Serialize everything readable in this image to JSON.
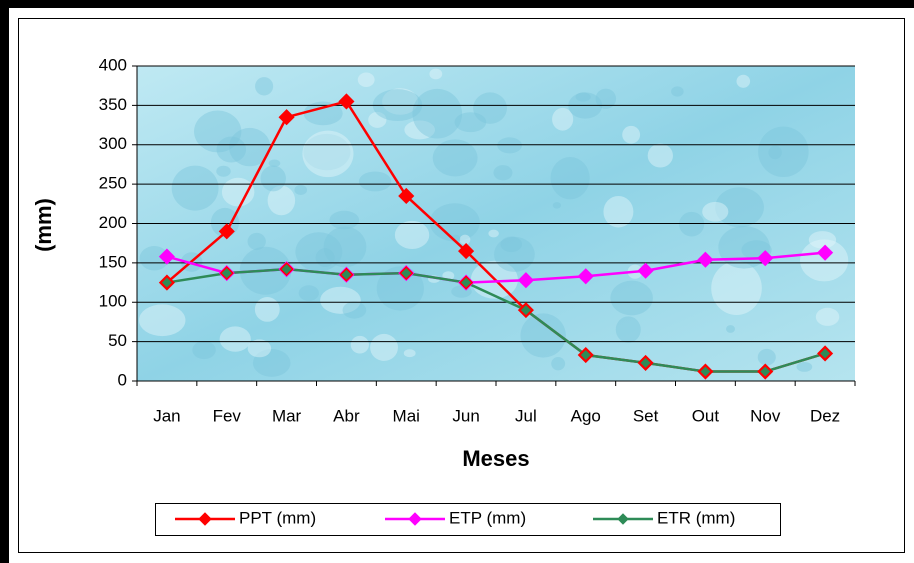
{
  "chart_data": {
    "type": "line",
    "x_label": "Meses",
    "y_label": "(mm)",
    "categories": [
      "Jan",
      "Fev",
      "Mar",
      "Abr",
      "Mai",
      "Jun",
      "Jul",
      "Ago",
      "Set",
      "Out",
      "Nov",
      "Dez"
    ],
    "series": [
      {
        "name": "PPT (mm)",
        "color": "#ff0000",
        "values": [
          125,
          190,
          335,
          355,
          235,
          165,
          90,
          33,
          23,
          12,
          12,
          35
        ]
      },
      {
        "name": "ETP (mm)",
        "color": "#ff00ff",
        "values": [
          158,
          137,
          142,
          135,
          137,
          125,
          128,
          133,
          140,
          154,
          156,
          163
        ]
      },
      {
        "name": "ETR (mm)",
        "color": "#2e8b57",
        "values": [
          125,
          137,
          142,
          135,
          137,
          125,
          90,
          33,
          23,
          12,
          12,
          35
        ]
      }
    ],
    "ylim": [
      0,
      400
    ],
    "yticks": [
      0,
      50,
      100,
      150,
      200,
      250,
      300,
      350,
      400
    ],
    "grid": true,
    "legend": "bottom"
  }
}
